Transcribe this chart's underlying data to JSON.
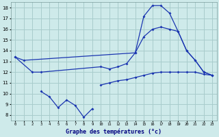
{
  "title": "Graphe des températures (°c)",
  "background_color": "#ceeaea",
  "grid_color": "#a8cccc",
  "line_color": "#1a35b0",
  "xlim": [
    -0.5,
    23.5
  ],
  "ylim": [
    7.5,
    18.5
  ],
  "yticks": [
    8,
    9,
    10,
    11,
    12,
    13,
    14,
    15,
    16,
    17,
    18
  ],
  "xticks": [
    0,
    1,
    2,
    3,
    4,
    5,
    6,
    7,
    8,
    9,
    10,
    11,
    12,
    13,
    14,
    15,
    16,
    17,
    18,
    19,
    20,
    21,
    22,
    23
  ],
  "series": [
    {
      "x": [
        0,
        1,
        14,
        15,
        16,
        17,
        18,
        19,
        20,
        21,
        22,
        23
      ],
      "y": [
        13.4,
        13.1,
        13.8,
        17.2,
        18.2,
        18.2,
        17.5,
        15.8,
        14.0,
        13.1,
        12.0,
        11.7
      ]
    },
    {
      "x": [
        0,
        2,
        3,
        10,
        11,
        12,
        13,
        14,
        15,
        16,
        17,
        18,
        19,
        20,
        21,
        22,
        23
      ],
      "y": [
        13.4,
        12.0,
        12.0,
        12.5,
        12.3,
        12.5,
        12.8,
        13.8,
        15.3,
        16.0,
        16.2,
        16.0,
        15.8,
        14.0,
        13.1,
        12.0,
        11.7
      ]
    },
    {
      "x": [
        3,
        4,
        5,
        6,
        7,
        8,
        9
      ],
      "y": [
        10.2,
        9.7,
        8.7,
        9.4,
        8.9,
        7.8,
        8.6
      ]
    },
    {
      "x": [
        10,
        11,
        12,
        13,
        14,
        15,
        16,
        17,
        18,
        19,
        20,
        21,
        22,
        23
      ],
      "y": [
        10.8,
        11.0,
        11.2,
        11.3,
        11.5,
        11.7,
        11.9,
        12.0,
        12.0,
        12.0,
        12.0,
        12.0,
        11.8,
        11.7
      ]
    }
  ]
}
